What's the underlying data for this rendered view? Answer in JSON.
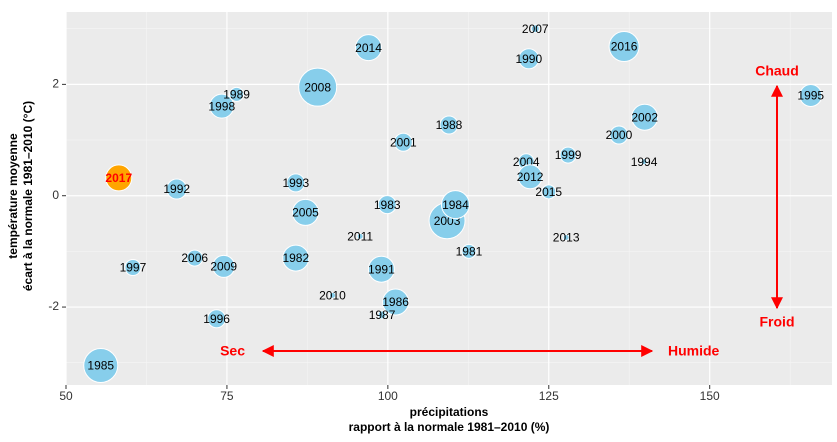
{
  "chart_data": {
    "type": "scatter",
    "x_label": [
      "précipitations",
      "rapport à la normale 1981–2010 (%)"
    ],
    "y_label": [
      "température moyenne",
      "écart à la normale 1981–2010 (°C)"
    ],
    "labels": [
      "1985",
      "2017",
      "1992",
      "1997",
      "2006",
      "2009",
      "1996",
      "1998",
      "1989",
      "1982",
      "1993",
      "2005",
      "2008",
      "2014",
      "2010",
      "2011",
      "1983",
      "1991",
      "1986",
      "1987",
      "2001",
      "2003",
      "1984",
      "1988",
      "1981",
      "2007",
      "1990",
      "2004",
      "2012",
      "2015",
      "2013",
      "1999",
      "2016",
      "2000",
      "2002",
      "1994",
      "1995"
    ],
    "x": [
      55.4,
      58.2,
      67.2,
      60.4,
      70,
      74.5,
      73.4,
      74.2,
      76.5,
      85.7,
      85.7,
      87.2,
      89.1,
      97,
      91.4,
      95.7,
      99.9,
      99,
      101.2,
      99.1,
      102.4,
      109.2,
      110.5,
      109.5,
      112.6,
      122.9,
      121.9,
      121.5,
      122.1,
      125,
      127.7,
      128,
      136.7,
      135.9,
      139.9,
      139.8,
      165.7
    ],
    "y": [
      -3.05,
      0.32,
      0.12,
      -1.29,
      -1.12,
      -1.27,
      -2.21,
      1.61,
      1.82,
      -1.12,
      0.23,
      -0.3,
      1.95,
      2.66,
      -1.79,
      -0.73,
      -0.16,
      -1.32,
      -1.91,
      -2.14,
      0.96,
      -0.45,
      -0.16,
      1.27,
      -1,
      3,
      2.46,
      0.61,
      0.34,
      0.07,
      -0.75,
      0.73,
      2.68,
      1.09,
      1.41,
      0.61,
      1.8
    ],
    "size": [
      17,
      13,
      10,
      8,
      8,
      11,
      9,
      12,
      7,
      13,
      9,
      13,
      19,
      13,
      3,
      3,
      9,
      13,
      13,
      4,
      9,
      18,
      14,
      9,
      7,
      4,
      10,
      8,
      12,
      7,
      3,
      8,
      15,
      9,
      13,
      3,
      11
    ],
    "color": "#87ceeb",
    "highlight_index": 1,
    "highlight_color": "#ffa500",
    "highlight_label_color": "#ff0000",
    "xlim": [
      50,
      169
    ],
    "xticks": [
      50,
      75,
      100,
      125,
      150
    ],
    "ylim": [
      -3.4,
      3.3
    ],
    "yticks": [
      -2,
      0,
      2
    ],
    "grid": true,
    "annotations": [
      "Chaud",
      "Froid",
      "Sec",
      "Humide"
    ]
  }
}
